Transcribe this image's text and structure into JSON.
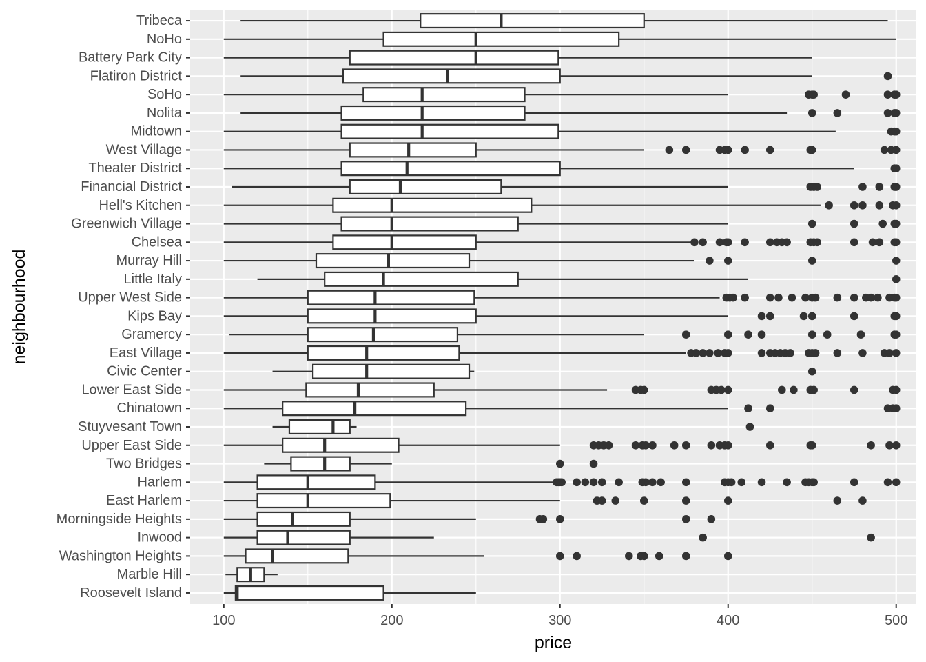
{
  "chart_data": {
    "type": "boxplot",
    "orientation": "horizontal",
    "xlabel": "price",
    "ylabel": "neighbourhood",
    "xlim": [
      80,
      512
    ],
    "xticks": [
      100,
      200,
      300,
      400,
      500
    ],
    "grid": true,
    "legend": "none",
    "colors": {
      "panel": "#ebebeb",
      "grid_major": "#ffffff",
      "box_fill": "#ffffff",
      "box_stroke": "#333333",
      "outlier": "#333333",
      "tick_text": "#4d4d4d",
      "axis_title": "#000000"
    },
    "categories": [
      {
        "name": "Tribeca",
        "whisker_low": 110,
        "q1": 217,
        "median": 265,
        "q3": 350,
        "whisker_high": 495,
        "outliers": []
      },
      {
        "name": "NoHo",
        "whisker_low": 100,
        "q1": 195,
        "median": 250,
        "q3": 335,
        "whisker_high": 500,
        "outliers": []
      },
      {
        "name": "Battery Park City",
        "whisker_low": 100,
        "q1": 175,
        "median": 250,
        "q3": 299,
        "whisker_high": 450,
        "outliers": []
      },
      {
        "name": "Flatiron District",
        "whisker_low": 110,
        "q1": 171,
        "median": 233,
        "q3": 300,
        "whisker_high": 450,
        "outliers": [
          495
        ]
      },
      {
        "name": "SoHo",
        "whisker_low": 100,
        "q1": 183,
        "median": 218,
        "q3": 279,
        "whisker_high": 400,
        "outliers": [
          448,
          450,
          451,
          470,
          495,
          499,
          500
        ]
      },
      {
        "name": "Nolita",
        "whisker_low": 110,
        "q1": 170,
        "median": 218,
        "q3": 279,
        "whisker_high": 435,
        "outliers": [
          450,
          465,
          495,
          499,
          500
        ]
      },
      {
        "name": "Midtown",
        "whisker_low": 100,
        "q1": 170,
        "median": 218,
        "q3": 299,
        "whisker_high": 464,
        "outliers": [
          497,
          499,
          500
        ]
      },
      {
        "name": "West Village",
        "whisker_low": 100,
        "q1": 175,
        "median": 210,
        "q3": 250,
        "whisker_high": 350,
        "outliers": [
          365,
          375,
          395,
          398,
          400,
          410,
          425,
          449,
          450,
          493,
          497,
          500
        ]
      },
      {
        "name": "Theater District",
        "whisker_low": 100,
        "q1": 170,
        "median": 209,
        "q3": 300,
        "whisker_high": 475,
        "outliers": [
          499,
          500
        ]
      },
      {
        "name": "Financial District",
        "whisker_low": 105,
        "q1": 175,
        "median": 205,
        "q3": 265,
        "whisker_high": 400,
        "outliers": [
          449,
          451,
          453,
          480,
          490,
          499,
          500
        ]
      },
      {
        "name": "Hell's Kitchen",
        "whisker_low": 100,
        "q1": 165,
        "median": 200,
        "q3": 283,
        "whisker_high": 455,
        "outliers": [
          460,
          475,
          480,
          490,
          498,
          500
        ]
      },
      {
        "name": "Greenwich Village",
        "whisker_low": 100,
        "q1": 170,
        "median": 200,
        "q3": 275,
        "whisker_high": 400,
        "outliers": [
          450,
          475,
          492,
          499,
          500
        ]
      },
      {
        "name": "Chelsea",
        "whisker_low": 100,
        "q1": 165,
        "median": 200,
        "q3": 250,
        "whisker_high": 380,
        "outliers": [
          380,
          385,
          395,
          399,
          400,
          410,
          425,
          429,
          432,
          435,
          449,
          451,
          453,
          475,
          486,
          490,
          499,
          500
        ]
      },
      {
        "name": "Murray Hill",
        "whisker_low": 100,
        "q1": 155,
        "median": 198,
        "q3": 246,
        "whisker_high": 380,
        "outliers": [
          389,
          400,
          450,
          500
        ]
      },
      {
        "name": "Little Italy",
        "whisker_low": 120,
        "q1": 160,
        "median": 195,
        "q3": 275,
        "whisker_high": 412,
        "outliers": [
          500
        ]
      },
      {
        "name": "Upper West Side",
        "whisker_low": 100,
        "q1": 150,
        "median": 190,
        "q3": 249,
        "whisker_high": 395,
        "outliers": [
          399,
          401,
          403,
          410,
          425,
          430,
          438,
          446,
          450,
          452,
          465,
          475,
          482,
          485,
          489,
          496,
          499,
          500
        ]
      },
      {
        "name": "Kips Bay",
        "whisker_low": 100,
        "q1": 150,
        "median": 190,
        "q3": 250,
        "whisker_high": 400,
        "outliers": [
          420,
          425,
          445,
          450,
          475,
          499,
          500
        ]
      },
      {
        "name": "Gramercy",
        "whisker_low": 103,
        "q1": 150,
        "median": 189,
        "q3": 239,
        "whisker_high": 350,
        "outliers": [
          375,
          400,
          412,
          420,
          450,
          459,
          479,
          499,
          500
        ]
      },
      {
        "name": "East Village",
        "whisker_low": 100,
        "q1": 150,
        "median": 185,
        "q3": 240,
        "whisker_high": 375,
        "outliers": [
          378,
          381,
          385,
          389,
          394,
          398,
          400,
          420,
          425,
          428,
          431,
          434,
          437,
          448,
          450,
          452,
          465,
          480,
          493,
          496,
          500
        ]
      },
      {
        "name": "Civic Center",
        "whisker_low": 129,
        "q1": 153,
        "median": 185,
        "q3": 246,
        "whisker_high": 249,
        "outliers": [
          450
        ]
      },
      {
        "name": "Lower East Side",
        "whisker_low": 100,
        "q1": 149,
        "median": 180,
        "q3": 225,
        "whisker_high": 328,
        "outliers": [
          345,
          348,
          350,
          390,
          393,
          396,
          400,
          432,
          439,
          449,
          451,
          475,
          498,
          500
        ]
      },
      {
        "name": "Chinatown",
        "whisker_low": 100,
        "q1": 135,
        "median": 178,
        "q3": 244,
        "whisker_high": 400,
        "outliers": [
          412,
          425,
          495,
          498,
          500
        ]
      },
      {
        "name": "Stuyvesant Town",
        "whisker_low": 129,
        "q1": 139,
        "median": 165,
        "q3": 175,
        "whisker_high": 179,
        "outliers": [
          413
        ]
      },
      {
        "name": "Upper East Side",
        "whisker_low": 100,
        "q1": 135,
        "median": 160,
        "q3": 204,
        "whisker_high": 300,
        "outliers": [
          320,
          323,
          326,
          329,
          345,
          349,
          351,
          355,
          368,
          375,
          390,
          395,
          398,
          400,
          425,
          449,
          450,
          485,
          496,
          500
        ]
      },
      {
        "name": "Two Bridges",
        "whisker_low": 124,
        "q1": 140,
        "median": 160,
        "q3": 175,
        "whisker_high": 200,
        "outliers": [
          300,
          320
        ]
      },
      {
        "name": "Harlem",
        "whisker_low": 100,
        "q1": 120,
        "median": 150,
        "q3": 190,
        "whisker_high": 296,
        "outliers": [
          298,
          299,
          300,
          301,
          310,
          315,
          320,
          325,
          335,
          349,
          351,
          355,
          360,
          375,
          398,
          400,
          402,
          408,
          420,
          435,
          446,
          448,
          450,
          451,
          475,
          495,
          500
        ]
      },
      {
        "name": "East Harlem",
        "whisker_low": 100,
        "q1": 120,
        "median": 150,
        "q3": 199,
        "whisker_high": 300,
        "outliers": [
          322,
          325,
          333,
          350,
          375,
          400,
          465,
          480
        ]
      },
      {
        "name": "Morningside Heights",
        "whisker_low": 100,
        "q1": 120,
        "median": 141,
        "q3": 175,
        "whisker_high": 250,
        "outliers": [
          288,
          290,
          300,
          375,
          390
        ]
      },
      {
        "name": "Inwood",
        "whisker_low": 100,
        "q1": 120,
        "median": 138,
        "q3": 175,
        "whisker_high": 225,
        "outliers": [
          385,
          485
        ]
      },
      {
        "name": "Washington Heights",
        "whisker_low": 100,
        "q1": 113,
        "median": 129,
        "q3": 174,
        "whisker_high": 255,
        "outliers": [
          300,
          310,
          341,
          348,
          350,
          359,
          375,
          400
        ]
      },
      {
        "name": "Marble Hill",
        "whisker_low": 101,
        "q1": 108,
        "median": 116,
        "q3": 124,
        "whisker_high": 132,
        "outliers": []
      },
      {
        "name": "Roosevelt Island",
        "whisker_low": 100,
        "q1": 107,
        "median": 108,
        "q3": 195,
        "whisker_high": 250,
        "outliers": []
      }
    ]
  }
}
